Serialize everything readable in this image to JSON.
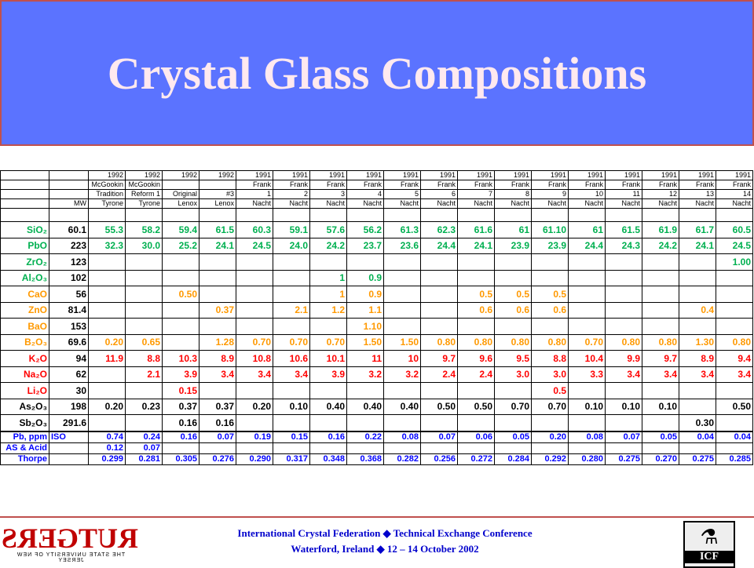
{
  "header": {
    "title": "Crystal Glass Compositions"
  },
  "table": {
    "header_rows": [
      [
        null,
        null,
        "1992",
        "1992",
        "1992",
        "1992",
        "1991",
        "1991",
        "1991",
        "1991",
        "1991",
        "1991",
        "1991",
        "1991",
        "1991",
        "1991",
        "1991",
        "1991",
        "1991",
        "1991"
      ],
      [
        null,
        null,
        "McGookin",
        "McGookin",
        null,
        null,
        "Frank",
        "Frank",
        "Frank",
        "Frank",
        "Frank",
        "Frank",
        "Frank",
        "Frank",
        "Frank",
        "Frank",
        "Frank",
        "Frank",
        "Frank",
        "Frank"
      ],
      [
        null,
        null,
        "Tradition",
        "Reform 1",
        "Original",
        "#3",
        "1",
        "2",
        "3",
        "4",
        "5",
        "6",
        "7",
        "8",
        "9",
        "10",
        "11",
        "12",
        "13",
        "14"
      ],
      [
        null,
        "MW",
        "Tyrone",
        "Tyrone",
        "Lenox",
        "Lenox",
        "Nacht",
        "Nacht",
        "Nacht",
        "Nacht",
        "Nacht",
        "Nacht",
        "Nacht",
        "Nacht",
        "Nacht",
        "Nacht",
        "Nacht",
        "Nacht",
        "Nacht",
        "Nacht"
      ]
    ],
    "rows": [
      {
        "label": "SiO₂",
        "color": "#00b050",
        "cells": [
          "60.1",
          "55.3",
          "58.2",
          "59.4",
          "61.5",
          "60.3",
          "59.1",
          "57.6",
          "56.2",
          "61.3",
          "62.3",
          "61.6",
          "61",
          "61.10",
          "61",
          "61.5",
          "61.9",
          "61.7",
          "60.5"
        ]
      },
      {
        "label": "PbO",
        "color": "#00b050",
        "cells": [
          "223",
          "32.3",
          "30.0",
          "25.2",
          "24.1",
          "24.5",
          "24.0",
          "24.2",
          "23.7",
          "23.6",
          "24.4",
          "24.1",
          "23.9",
          "23.9",
          "24.4",
          "24.3",
          "24.2",
          "24.1",
          "24.5"
        ]
      },
      {
        "label": "ZrO₂",
        "color": "#00b050",
        "cells": [
          "123",
          null,
          null,
          null,
          null,
          null,
          null,
          null,
          null,
          null,
          null,
          null,
          null,
          null,
          null,
          null,
          null,
          null,
          "1.00"
        ]
      },
      {
        "label": "Al₂O₃",
        "color": "#00b050",
        "cells": [
          "102",
          null,
          null,
          null,
          null,
          null,
          null,
          "1",
          "0.9",
          null,
          null,
          null,
          null,
          null,
          null,
          null,
          null,
          null,
          null
        ]
      },
      {
        "label": "CaO",
        "color": "#ff9900",
        "cells": [
          "56",
          null,
          null,
          "0.50",
          null,
          null,
          null,
          "1",
          "0.9",
          null,
          null,
          "0.5",
          "0.5",
          "0.5",
          null,
          null,
          null,
          null,
          null
        ]
      },
      {
        "label": "ZnO",
        "color": "#ff9900",
        "cells": [
          "81.4",
          null,
          null,
          null,
          "0.37",
          null,
          "2.1",
          "1.2",
          "1.1",
          null,
          null,
          "0.6",
          "0.6",
          "0.6",
          null,
          null,
          null,
          "0.4",
          null
        ]
      },
      {
        "label": "BaO",
        "color": "#ff9900",
        "cells": [
          "153",
          null,
          null,
          null,
          null,
          null,
          null,
          null,
          "1.10",
          null,
          null,
          null,
          null,
          null,
          null,
          null,
          null,
          null,
          null
        ]
      },
      {
        "label": "B₂O₃",
        "color": "#ff9900",
        "cells": [
          "69.6",
          "0.20",
          "0.65",
          null,
          "1.28",
          "0.70",
          "0.70",
          "0.70",
          "1.50",
          "1.50",
          "0.80",
          "0.80",
          "0.80",
          "0.80",
          "0.70",
          "0.80",
          "0.80",
          "1.30",
          "0.80"
        ]
      },
      {
        "label": "K₂O",
        "color": "#ff0000",
        "cells": [
          "94",
          "11.9",
          "8.8",
          "10.3",
          "8.9",
          "10.8",
          "10.6",
          "10.1",
          "11",
          "10",
          "9.7",
          "9.6",
          "9.5",
          "8.8",
          "10.4",
          "9.9",
          "9.7",
          "8.9",
          "9.4"
        ]
      },
      {
        "label": "Na₂O",
        "color": "#ff0000",
        "cells": [
          "62",
          null,
          "2.1",
          "3.9",
          "3.4",
          "3.4",
          "3.4",
          "3.9",
          "3.2",
          "3.2",
          "2.4",
          "2.4",
          "3.0",
          "3.0",
          "3.3",
          "3.4",
          "3.4",
          "3.4",
          "3.4"
        ]
      },
      {
        "label": "Li₂O",
        "color": "#ff0000",
        "cells": [
          "30",
          null,
          null,
          "0.15",
          null,
          null,
          null,
          null,
          null,
          null,
          null,
          null,
          null,
          "0.5",
          null,
          null,
          null,
          null,
          null
        ]
      },
      {
        "label": "As₂O₃",
        "color": "#000000",
        "cells": [
          "198",
          "0.20",
          "0.23",
          "0.37",
          "0.37",
          "0.20",
          "0.10",
          "0.40",
          "0.40",
          "0.40",
          "0.50",
          "0.50",
          "0.70",
          "0.70",
          "0.10",
          "0.10",
          "0.10",
          null,
          "0.50"
        ]
      },
      {
        "label": "Sb₂O₃",
        "color": "#000000",
        "cells": [
          "291.6",
          null,
          null,
          "0.16",
          "0.16",
          null,
          null,
          null,
          null,
          null,
          null,
          null,
          null,
          null,
          null,
          null,
          null,
          "0.30",
          null
        ]
      }
    ],
    "footer_rows": [
      {
        "label": "Pb, ppm",
        "color": "#0000ff",
        "cells": [
          "ISO",
          "0.74",
          "0.24",
          "0.16",
          "0.07",
          "0.19",
          "0.15",
          "0.16",
          "0.22",
          "0.08",
          "0.07",
          "0.06",
          "0.05",
          "0.20",
          "0.08",
          "0.07",
          "0.05",
          "0.04",
          "0.04"
        ]
      },
      {
        "label": "AS & Acid",
        "color": "#0000ff",
        "cells": [
          null,
          "0.12",
          "0.07",
          null,
          null,
          null,
          null,
          null,
          null,
          null,
          null,
          null,
          null,
          null,
          null,
          null,
          null,
          null,
          null
        ]
      },
      {
        "label": "Thorpe",
        "color": "#0000ff",
        "cells": [
          null,
          "0.299",
          "0.281",
          "0.305",
          "0.276",
          "0.290",
          "0.317",
          "0.348",
          "0.368",
          "0.282",
          "0.256",
          "0.272",
          "0.284",
          "0.292",
          "0.280",
          "0.275",
          "0.270",
          "0.275",
          "0.285"
        ]
      }
    ]
  },
  "footer": {
    "line1": "International Crystal Federation ◆ Technical Exchange Conference",
    "line2": "Waterford, Ireland ◆ 12 – 14 October 2002",
    "left_logo": "RUTGERS",
    "left_logo_sub": "THE STATE UNIVERSITY OF NEW JERSEY",
    "right_logo": "ICF"
  }
}
